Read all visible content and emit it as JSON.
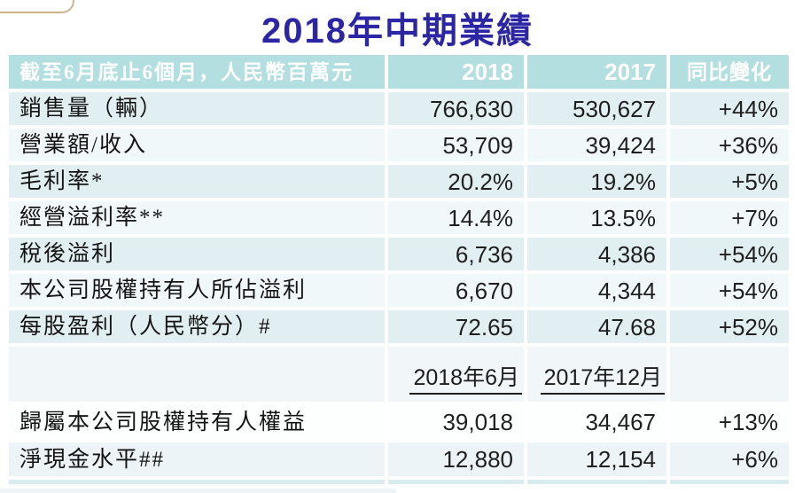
{
  "title": "2018年中期業績",
  "colors": {
    "title_text": "#2c26a5",
    "header_bg": "#b3dfe1",
    "header_text": "#ffffff",
    "row_tint": "#e2eff2",
    "row_light": "#f1f8f9",
    "body_text": "#1f1f1f",
    "decoration_border": "#c9b48e"
  },
  "table": {
    "header": {
      "period_label": "截至6月底止6個月，人民幣百萬元",
      "y2018": "2018",
      "y2017": "2017",
      "yoy": "同比變化"
    },
    "rows": [
      {
        "label": "銷售量（輛）",
        "v2018": "766,630",
        "v2017": "530,627",
        "yoy": "+44%"
      },
      {
        "label": "營業額/收入",
        "v2018": "53,709",
        "v2017": "39,424",
        "yoy": "+36%"
      },
      {
        "label": "毛利率*",
        "v2018": "20.2%",
        "v2017": "19.2%",
        "yoy": "+5%"
      },
      {
        "label": "經營溢利率**",
        "v2018": "14.4%",
        "v2017": "13.5%",
        "yoy": "+7%"
      },
      {
        "label": "稅後溢利",
        "v2018": "6,736",
        "v2017": "4,386",
        "yoy": "+54%"
      },
      {
        "label": "本公司股權持有人所佔溢利",
        "v2018": "6,670",
        "v2017": "4,344",
        "yoy": "+54%"
      },
      {
        "label": "每股盈利（人民幣分）#",
        "v2018": "72.65",
        "v2017": "47.68",
        "yoy": "+52%"
      }
    ],
    "subheader": {
      "date2018": "2018年6月",
      "date2017": "2017年12月"
    },
    "balance_rows": [
      {
        "label": "歸屬本公司股權持有人權益",
        "v2018": "39,018",
        "v2017": "34,467",
        "yoy": "+13%"
      },
      {
        "label": "淨現金水平##",
        "v2018": "12,880",
        "v2017": "12,154",
        "yoy": "+6%"
      }
    ]
  },
  "chart_data": {
    "type": "table",
    "title": "2018年中期業績",
    "columns": [
      "截至6月底止6個月，人民幣百萬元",
      "2018",
      "2017",
      "同比變化"
    ],
    "rows": [
      [
        "銷售量（輛）",
        "766,630",
        "530,627",
        "+44%"
      ],
      [
        "營業額/收入",
        "53,709",
        "39,424",
        "+36%"
      ],
      [
        "毛利率*",
        "20.2%",
        "19.2%",
        "+5%"
      ],
      [
        "經營溢利率**",
        "14.4%",
        "13.5%",
        "+7%"
      ],
      [
        "稅後溢利",
        "6,736",
        "4,386",
        "+54%"
      ],
      [
        "本公司股權持有人所佔溢利",
        "6,670",
        "4,344",
        "+54%"
      ],
      [
        "每股盈利（人民幣分）#",
        "72.65",
        "47.68",
        "+52%"
      ]
    ],
    "balance_section": {
      "column_headers": [
        "2018年6月",
        "2017年12月"
      ],
      "rows": [
        [
          "歸屬本公司股權持有人權益",
          "39,018",
          "34,467",
          "+13%"
        ],
        [
          "淨現金水平##",
          "12,880",
          "12,154",
          "+6%"
        ]
      ]
    }
  }
}
